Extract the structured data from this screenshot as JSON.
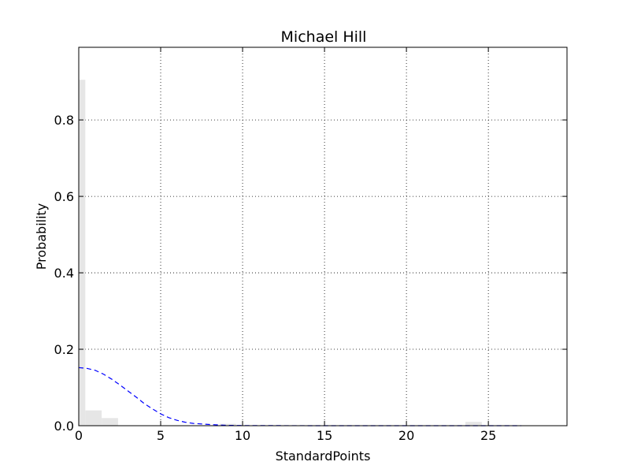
{
  "chart_data": {
    "type": "bar",
    "title": "Michael Hill",
    "xlabel": "StandardPoints",
    "ylabel": "Probability",
    "xlim": [
      0,
      29.8
    ],
    "ylim": [
      0,
      0.99
    ],
    "xticks": [
      0,
      5,
      10,
      15,
      20,
      25
    ],
    "yticks": [
      0.0,
      0.2,
      0.4,
      0.6,
      0.8
    ],
    "ytick_labels": [
      "0.0",
      "0.2",
      "0.4",
      "0.6",
      "0.8"
    ],
    "grid": true,
    "colors": {
      "bars": "#e6e6e6",
      "curve": "#0000ff"
    },
    "bars": [
      {
        "x0": 0.0,
        "x1": 0.4,
        "value": 0.905
      },
      {
        "x0": 0.4,
        "x1": 1.4,
        "value": 0.04
      },
      {
        "x0": 1.4,
        "x1": 2.4,
        "value": 0.02
      },
      {
        "x0": 8.6,
        "x1": 9.6,
        "value": 0.005
      },
      {
        "x0": 23.6,
        "x1": 24.6,
        "value": 0.01
      }
    ],
    "curve": {
      "style": "dashed",
      "x": [
        0,
        0.5,
        1,
        1.5,
        2,
        2.5,
        3,
        3.5,
        4,
        4.5,
        5,
        5.5,
        6,
        6.5,
        7,
        8,
        9,
        10,
        12,
        15,
        18,
        21,
        24,
        27
      ],
      "y": [
        0.152,
        0.15,
        0.145,
        0.135,
        0.122,
        0.107,
        0.091,
        0.075,
        0.058,
        0.044,
        0.031,
        0.021,
        0.014,
        0.009,
        0.006,
        0.003,
        0.001,
        0.0005,
        0.0002,
        0.0,
        0.0,
        0.0,
        0.0,
        0.0
      ]
    }
  }
}
